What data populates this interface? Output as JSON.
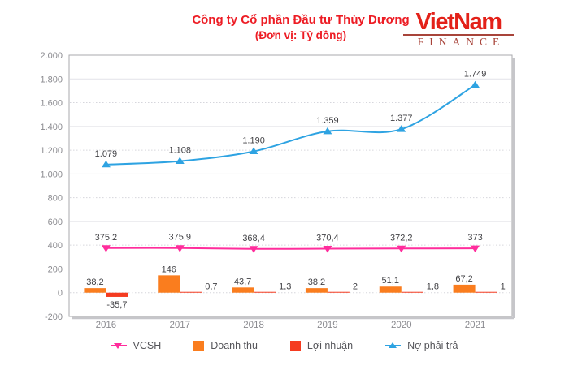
{
  "header": {
    "logo": {
      "line1": "VietNam",
      "line2": "FINANCE",
      "color": "#E32119",
      "accent_color": "#A8443A"
    }
  },
  "chart_data": {
    "type": "combo",
    "title": "Công ty Cổ phần Đầu tư Thùy Dương",
    "subtitle": "(Đơn vị: Tỷ đồng)",
    "title_color": "#ED1C24",
    "categories": [
      "2016",
      "2017",
      "2018",
      "2019",
      "2020",
      "2021"
    ],
    "y_axis": {
      "min": -200,
      "max": 2000,
      "step": 200,
      "tick_labels": [
        "2.000",
        "1.800",
        "1.600",
        "1.400",
        "1.200",
        "1.000",
        "800",
        "600",
        "400",
        "200",
        "0",
        "-200"
      ]
    },
    "grid": true,
    "legend_position": "bottom",
    "series": [
      {
        "name": "VCSH",
        "type": "line",
        "marker": "triangle-down",
        "color": "#FF2D9C",
        "values": [
          375.2,
          375.9,
          368.4,
          370.4,
          372.2,
          373
        ],
        "labels": [
          "375,2",
          "375,9",
          "368,4",
          "370,4",
          "372,2",
          "373"
        ]
      },
      {
        "name": "Doanh thu",
        "type": "bar",
        "color": "#FA7D1E",
        "values": [
          38.2,
          146,
          43.7,
          38.2,
          51.1,
          67.2
        ],
        "labels": [
          "38,2",
          "146",
          "43,7",
          "38,2",
          "51,1",
          "67,2"
        ]
      },
      {
        "name": "Lợi nhuận",
        "type": "bar",
        "color": "#F53B20",
        "values": [
          -35.7,
          0.7,
          1.3,
          2,
          1.8,
          1
        ],
        "labels": [
          "-35,7",
          "0,7",
          "1,3",
          "2",
          "1,8",
          "1"
        ]
      },
      {
        "name": "Nợ phải trả",
        "type": "line",
        "marker": "triangle-up",
        "color": "#2EA3E2",
        "values": [
          1079,
          1108,
          1190,
          1359,
          1377,
          1749
        ],
        "labels": [
          "1.079",
          "1.108",
          "1.190",
          "1.359",
          "1.377",
          "1.749"
        ]
      }
    ]
  }
}
